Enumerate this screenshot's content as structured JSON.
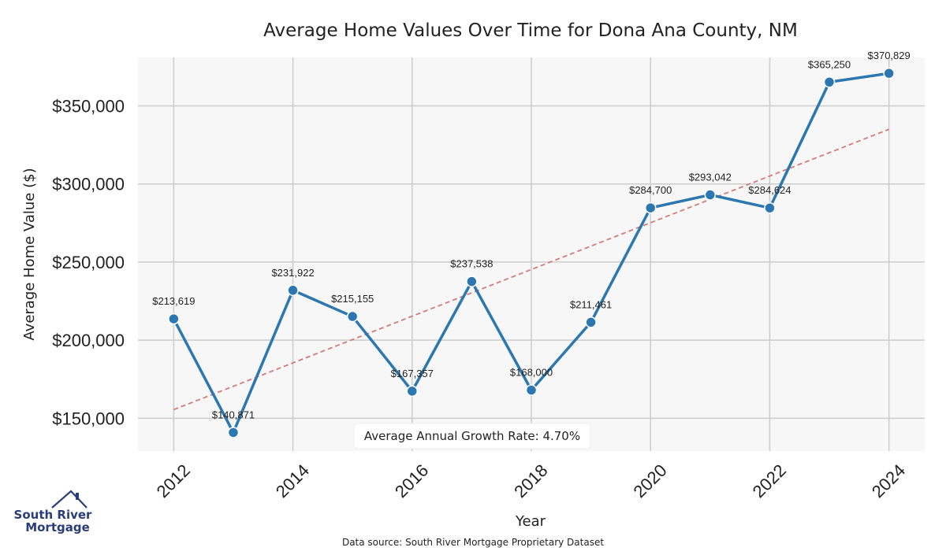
{
  "chart_data": {
    "type": "line",
    "title": "Average Home Values Over Time for Dona Ana County, NM",
    "xlabel": "Year",
    "ylabel": "Average Home Value ($)",
    "x": [
      2012,
      2013,
      2014,
      2015,
      2016,
      2017,
      2018,
      2019,
      2020,
      2021,
      2022,
      2023,
      2024
    ],
    "values": [
      213619,
      140871,
      231922,
      215155,
      167357,
      237538,
      168000,
      211461,
      284700,
      293042,
      284624,
      365250,
      370829
    ],
    "data_labels": [
      "$213,619",
      "$140,871",
      "$231,922",
      "$215,155",
      "$167,357",
      "$237,538",
      "$168,000",
      "$211,461",
      "$284,700",
      "$293,042",
      "$284,624",
      "$365,250",
      "$370,829"
    ],
    "xticks": [
      "2012",
      "2014",
      "2016",
      "2018",
      "2020",
      "2022",
      "2024"
    ],
    "yticks": [
      {
        "value": 150000,
        "label": "$150,000"
      },
      {
        "value": 200000,
        "label": "$200,000"
      },
      {
        "value": 250000,
        "label": "$250,000"
      },
      {
        "value": 300000,
        "label": "$300,000"
      },
      {
        "value": 350000,
        "label": "$350,000"
      }
    ],
    "xlim": [
      2011.4,
      2024.6
    ],
    "ylim": [
      129000,
      381000
    ],
    "trend_line": {
      "start": [
        2012,
        155500
      ],
      "end": [
        2024,
        335000
      ],
      "style": "dashed"
    },
    "annotation": "Average Annual Growth Rate: 4.70%",
    "grid": true,
    "colors": {
      "line": "#2c77b0",
      "marker": "#2c77b0",
      "trend": "#d47a7a",
      "plot_bg": "#f7f7f7",
      "grid": "#cccccc"
    }
  },
  "source_text": "Data source: South River Mortgage Proprietary Dataset",
  "logo": {
    "line1": "South River",
    "line2": "Mortgage",
    "icon": "house-roof-icon",
    "color": "#2a3d7a"
  }
}
